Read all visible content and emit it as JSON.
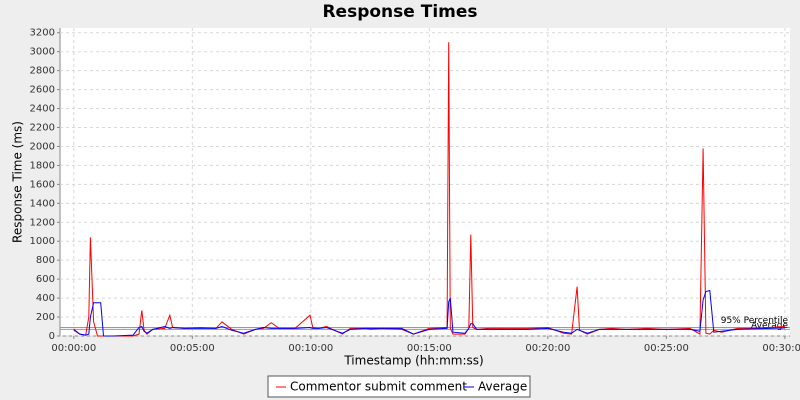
{
  "chart_data": {
    "type": "line",
    "title": "Response Times",
    "x_label": "Timestamp (hh:mm:ss)",
    "y_label": "Response Time (ms)",
    "x": [
      0,
      15,
      30,
      38,
      42,
      50,
      60,
      68,
      75,
      100,
      150,
      165,
      172,
      178,
      185,
      200,
      230,
      243,
      250,
      280,
      320,
      360,
      375,
      400,
      430,
      460,
      480,
      500,
      520,
      560,
      598,
      605,
      620,
      640,
      680,
      700,
      740,
      750,
      780,
      830,
      860,
      900,
      940,
      945,
      949,
      953,
      960,
      990,
      1000,
      1005,
      1010,
      1020,
      1050,
      1100,
      1150,
      1200,
      1240,
      1260,
      1274,
      1280,
      1300,
      1330,
      1360,
      1400,
      1450,
      1500,
      1560,
      1585,
      1593,
      1600,
      1610,
      1620,
      1640,
      1680,
      1720,
      1760,
      1800
    ],
    "series": [
      {
        "name": "Commentor submit comment",
        "color": "#ff0000",
        "values": [
          60,
          20,
          10,
          200,
          1040,
          150,
          0,
          0,
          0,
          0,
          0,
          20,
          270,
          60,
          20,
          70,
          80,
          220,
          90,
          80,
          90,
          80,
          150,
          70,
          20,
          70,
          80,
          140,
          80,
          80,
          220,
          90,
          80,
          100,
          20,
          80,
          80,
          70,
          80,
          70,
          20,
          80,
          90,
          90,
          3100,
          80,
          20,
          20,
          80,
          1070,
          90,
          70,
          80,
          80,
          80,
          90,
          30,
          20,
          520,
          60,
          20,
          70,
          80,
          70,
          80,
          70,
          80,
          20,
          1980,
          30,
          20,
          60,
          40,
          80,
          80,
          90,
          100
        ]
      },
      {
        "name": "Average",
        "color": "#0000ff",
        "values": [
          70,
          20,
          10,
          20,
          200,
          350,
          350,
          350,
          0,
          0,
          10,
          90,
          100,
          50,
          30,
          70,
          100,
          80,
          90,
          80,
          80,
          80,
          100,
          60,
          30,
          70,
          90,
          80,
          80,
          80,
          90,
          80,
          80,
          90,
          30,
          70,
          80,
          80,
          80,
          80,
          20,
          70,
          80,
          80,
          360,
          400,
          40,
          30,
          80,
          130,
          130,
          70,
          70,
          70,
          70,
          80,
          40,
          30,
          70,
          60,
          30,
          70,
          70,
          70,
          70,
          70,
          70,
          50,
          380,
          470,
          480,
          40,
          50,
          70,
          75,
          80,
          85
        ]
      }
    ],
    "reference_lines": [
      {
        "label": "95% Percentile",
        "value": 90
      },
      {
        "label": "Average",
        "value": 70
      }
    ],
    "xlim": [
      -35,
      1813
    ],
    "ylim": [
      0,
      3250
    ],
    "xticks": [
      {
        "value": 0,
        "label": "00:00:00"
      },
      {
        "value": 300,
        "label": "00:05:00"
      },
      {
        "value": 600,
        "label": "00:10:00"
      },
      {
        "value": 900,
        "label": "00:15:00"
      },
      {
        "value": 1200,
        "label": "00:20:00"
      },
      {
        "value": 1500,
        "label": "00:25:00"
      },
      {
        "value": 1800,
        "label": "00:30:00"
      }
    ],
    "yticks": [
      0,
      200,
      400,
      600,
      800,
      1000,
      1200,
      1400,
      1600,
      1800,
      2000,
      2200,
      2400,
      2600,
      2800,
      3000,
      3200
    ],
    "grid": true
  }
}
